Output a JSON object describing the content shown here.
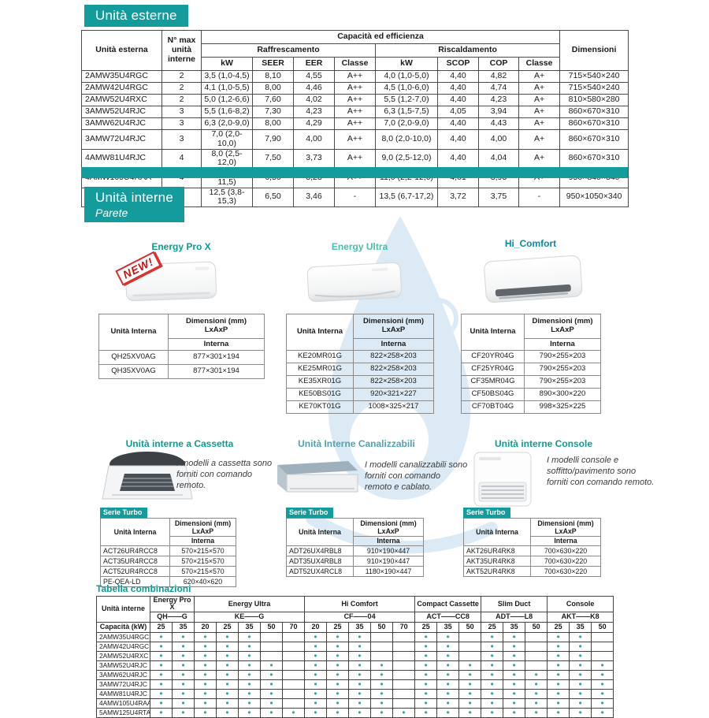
{
  "external_units": {
    "title": "Unità esterne",
    "headers": {
      "unit": "Unità esterna",
      "max": "N° max unità interne",
      "cap": "Capacità ed efficienza",
      "cooling": "Raffrescamento",
      "heating": "Riscaldamento",
      "kw": "kW",
      "seer": "SEER",
      "eer": "EER",
      "classe": "Classe",
      "scop": "SCOP",
      "cop": "COP",
      "dim": "Dimensioni"
    },
    "rows": [
      [
        "2AMW35U4RGC",
        "2",
        "3,5 (1,0-4,5)",
        "8,10",
        "4,55",
        "A++",
        "4,0 (1,0-5,0)",
        "4,40",
        "4,82",
        "A+",
        "715×540×240"
      ],
      [
        "2AMW42U4RGC",
        "2",
        "4,1 (1,0-5,5)",
        "8,00",
        "4,46",
        "A++",
        "4,5 (1,0-6,0)",
        "4,40",
        "4,74",
        "A+",
        "715×540×240"
      ],
      [
        "2AMW52U4RXC",
        "2",
        "5,0 (1,2-6,6)",
        "7,60",
        "4,02",
        "A++",
        "5,5 (1,2-7,0)",
        "4,40",
        "4,23",
        "A+",
        "810×580×280"
      ],
      [
        "3AMW52U4RJC",
        "3",
        "5,5 (1,6-8,2)",
        "7,30",
        "4,23",
        "A++",
        "6,3 (1,5-7,5)",
        "4,05",
        "3,94",
        "A+",
        "860×670×310"
      ],
      [
        "3AMW62U4RJC",
        "3",
        "6,3 (2,0-9,0)",
        "8,00",
        "4,29",
        "A++",
        "7,0 (2,0-9,0)",
        "4,40",
        "4,43",
        "A+",
        "860×670×310"
      ],
      [
        "3AMW72U4RJC",
        "3",
        "7,0 (2,0-10,0)",
        "7,90",
        "4,00",
        "A++",
        "8,0 (2,0-10,0)",
        "4,40",
        "4,00",
        "A+",
        "860×670×310"
      ],
      [
        "4AMW81U4RJC",
        "4",
        "8,0 (2,5-12,0)",
        "7,50",
        "3,73",
        "A++",
        "9,0 (2,5-12,0)",
        "4,40",
        "4,04",
        "A+",
        "860×670×310"
      ],
      [
        "4AMW105U4RAA",
        "4",
        "10,0 (2,6-11,5)",
        "6,50",
        "3,23",
        "A++",
        "11,0 (2,2-12,0)",
        "4,01",
        "3,93",
        "A+",
        "950×840×340"
      ],
      [
        "5AMW125U4RTA",
        "5",
        "12,5 (3,8-15,3)",
        "6,50",
        "3,46",
        "-",
        "13,5 (6,7-17,2)",
        "3,72",
        "3,75",
        "-",
        "950×1050×340"
      ]
    ]
  },
  "internal_units": {
    "title": "Unità interne",
    "subtitle": "Parete",
    "badge": "NEW!"
  },
  "dim_table": {
    "unit_header": "Unità Interna",
    "dims": "Dimensioni (mm)",
    "lxaxp": "LxAxP",
    "interna": "Interna"
  },
  "wall_series": {
    "pro_x": {
      "name": "Energy Pro X",
      "rows": [
        [
          "QH25XV0AG",
          "877×301×194"
        ],
        [
          "QH35XV0AG",
          "877×301×194"
        ]
      ]
    },
    "ultra": {
      "name": "Energy Ultra",
      "rows": [
        [
          "KE20MR01G",
          "822×258×203"
        ],
        [
          "KE25MR01G",
          "822×258×203"
        ],
        [
          "KE35XR01G",
          "822×258×203"
        ],
        [
          "KE50BS01G",
          "920×321×227"
        ],
        [
          "KE70KT01G",
          "1008×325×217"
        ]
      ]
    },
    "hi_comfort": {
      "name": "Hi_Comfort",
      "rows": [
        [
          "CF20YR04G",
          "790×255×203"
        ],
        [
          "CF25YR04G",
          "790×255×203"
        ],
        [
          "CF35MR04G",
          "790×255×203"
        ],
        [
          "CF50BS04G",
          "890×300×220"
        ],
        [
          "CF70BT04G",
          "998×325×225"
        ]
      ]
    }
  },
  "special_units": {
    "cassetta": {
      "title": "Unità interne a Cassetta",
      "note": "I modelli a cassetta sono forniti con comando remoto.",
      "serie": "Serie Turbo",
      "rows": [
        [
          "ACT26UR4RCC8",
          "570×215×570"
        ],
        [
          "ACT35UR4RCC8",
          "570×215×570"
        ],
        [
          "ACT52UR4RCC8",
          "570×215×570"
        ],
        [
          "PE-QEA-LD",
          "620×40×620"
        ]
      ]
    },
    "canalizzabili": {
      "title": "Unità Interne Canalizzabili",
      "note": "I modelli canalizzabili sono forniti con comando remoto e cablato.",
      "serie": "Serie Turbo",
      "rows": [
        [
          "ADT26UX4RBL8",
          "910×190×447"
        ],
        [
          "ADT35UX4RBL8",
          "910×190×447"
        ],
        [
          "ADT52UX4RCL8",
          "1180×190×447"
        ]
      ]
    },
    "console": {
      "title": "Unità interne Console",
      "note": "I modelli console e soffitto/pavimento sono forniti con comando remoto.",
      "serie": "Serie Turbo",
      "rows": [
        [
          "AKT26UR4RK8",
          "700×630×220"
        ],
        [
          "AKT35UR4RK8",
          "700×630×220"
        ],
        [
          "AKT52UR4RK8",
          "700×630×220"
        ]
      ]
    }
  },
  "combinations": {
    "title": "Tabella combinazioni",
    "left_header": "Unità interne",
    "capacity_label": "Capacità (kW)",
    "groups": [
      {
        "name": "Energy Pro X",
        "code": "QH——G",
        "caps": [
          "25",
          "35"
        ]
      },
      {
        "name": "Energy Ultra",
        "code": "KE——G",
        "caps": [
          "20",
          "25",
          "35",
          "50",
          "70"
        ]
      },
      {
        "name": "Hi Comfort",
        "code": "CF——04",
        "caps": [
          "20",
          "25",
          "35",
          "50",
          "70"
        ]
      },
      {
        "name": "Compact Cassette",
        "code": "ACT——CC8",
        "caps": [
          "25",
          "35",
          "50"
        ]
      },
      {
        "name": "Slim Duct",
        "code": "ADT——L8",
        "caps": [
          "25",
          "35",
          "50"
        ]
      },
      {
        "name": "Console",
        "code": "AKT——K8",
        "caps": [
          "25",
          "35",
          "50"
        ]
      }
    ],
    "rows": [
      [
        "2AMW35U4RGC",
        "●",
        "●",
        "●",
        "●",
        "●",
        "",
        "",
        "●",
        "●",
        "●",
        "",
        "",
        "●",
        "●",
        "",
        "●",
        "●",
        "",
        "●",
        "●",
        ""
      ],
      [
        "2AMW42U4RGC",
        "●",
        "●",
        "●",
        "●",
        "●",
        "",
        "",
        "●",
        "●",
        "●",
        "",
        "",
        "●",
        "●",
        "",
        "●",
        "●",
        "",
        "●",
        "●",
        ""
      ],
      [
        "2AMW52U4RXC",
        "●",
        "●",
        "●",
        "●",
        "●",
        "",
        "",
        "●",
        "●",
        "●",
        "",
        "",
        "●",
        "●",
        "",
        "●",
        "●",
        "",
        "●",
        "●",
        ""
      ],
      [
        "3AMW52U4RJC",
        "●",
        "●",
        "●",
        "●",
        "●",
        "●",
        "",
        "●",
        "●",
        "●",
        "●",
        "",
        "●",
        "●",
        "●",
        "●",
        "●",
        "",
        "●",
        "●",
        "●"
      ],
      [
        "3AMW62U4RJC",
        "●",
        "●",
        "●",
        "●",
        "●",
        "●",
        "",
        "●",
        "●",
        "●",
        "●",
        "",
        "●",
        "●",
        "●",
        "●",
        "●",
        "●",
        "●",
        "●",
        "●"
      ],
      [
        "3AMW72U4RJC",
        "●",
        "●",
        "●",
        "●",
        "●",
        "●",
        "",
        "●",
        "●",
        "●",
        "●",
        "",
        "●",
        "●",
        "●",
        "●",
        "●",
        "●",
        "●",
        "●",
        "●"
      ],
      [
        "4AMW81U4RJC",
        "●",
        "●",
        "●",
        "●",
        "●",
        "●",
        "",
        "●",
        "●",
        "●",
        "●",
        "",
        "●",
        "●",
        "●",
        "●",
        "●",
        "●",
        "●",
        "●",
        "●"
      ],
      [
        "4AMW105U4RAA",
        "●",
        "●",
        "●",
        "●",
        "●",
        "●",
        "",
        "●",
        "●",
        "●",
        "●",
        "",
        "●",
        "●",
        "●",
        "●",
        "●",
        "●",
        "●",
        "●",
        "●"
      ],
      [
        "5AMW125U4RTA",
        "●",
        "●",
        "●",
        "●",
        "●",
        "●",
        "●",
        "●",
        "●",
        "●",
        "●",
        "●",
        "●",
        "●",
        "●",
        "●",
        "●",
        "●",
        "●",
        "●",
        "●"
      ]
    ]
  },
  "watermark": {
    "registered": "R"
  }
}
